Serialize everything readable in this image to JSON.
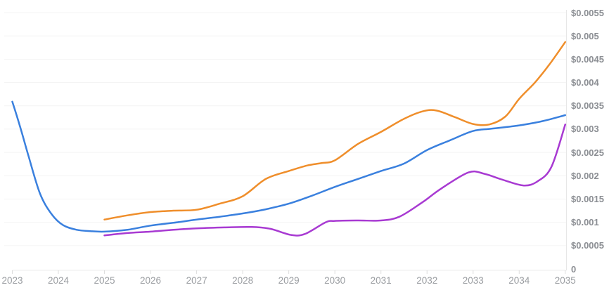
{
  "page": {
    "background": "#ffffff"
  },
  "chart": {
    "grid_color": "#f4f4f4",
    "baseline_color": "#ececec",
    "axis_color": "#e7e7e7",
    "tick_color": "#dddddd",
    "y_axis": {
      "side": "right",
      "step": 0.0005,
      "labels": [
        "$0.0055",
        "$0.005",
        "$0.0045",
        "$0.004",
        "$0.0035",
        "$0.003",
        "$0.0025",
        "$0.002",
        "$0.0015",
        "$0.001",
        "$0.0005",
        "0"
      ]
    },
    "x_axis": {
      "labels": [
        "2023",
        "2024",
        "2025",
        "2026",
        "2027",
        "2028",
        "2029",
        "2030",
        "2031",
        "2032",
        "2033",
        "2034",
        "2035"
      ]
    }
  },
  "chart_data": {
    "type": "line",
    "title": "",
    "xlabel": "",
    "ylabel": "",
    "x_range": [
      2023,
      2035
    ],
    "y_range": [
      0,
      0.0055
    ],
    "grid": "horizontal-faint",
    "legend": "none",
    "series": [
      {
        "name": "blue",
        "color": "#3a80de",
        "points": [
          [
            2023.0,
            0.00359
          ],
          [
            2023.17,
            0.00305
          ],
          [
            2023.35,
            0.00243
          ],
          [
            2023.6,
            0.00162
          ],
          [
            2023.85,
            0.00118
          ],
          [
            2024.1,
            0.00094
          ],
          [
            2024.4,
            0.00084
          ],
          [
            2024.7,
            0.00081
          ],
          [
            2025.0,
            0.0008
          ],
          [
            2025.5,
            0.00084
          ],
          [
            2026.0,
            0.00093
          ],
          [
            2026.5,
            0.00099
          ],
          [
            2027.0,
            0.00106
          ],
          [
            2027.5,
            0.00112
          ],
          [
            2028.0,
            0.00119
          ],
          [
            2028.5,
            0.00128
          ],
          [
            2029.0,
            0.0014
          ],
          [
            2029.5,
            0.00157
          ],
          [
            2030.0,
            0.00176
          ],
          [
            2030.5,
            0.00193
          ],
          [
            2031.0,
            0.0021
          ],
          [
            2031.5,
            0.00226
          ],
          [
            2032.0,
            0.00255
          ],
          [
            2032.5,
            0.00276
          ],
          [
            2033.0,
            0.00296
          ],
          [
            2033.4,
            0.00301
          ],
          [
            2034.0,
            0.00308
          ],
          [
            2034.5,
            0.00317
          ],
          [
            2035.0,
            0.0033
          ]
        ]
      },
      {
        "name": "orange",
        "color": "#ef8e2b",
        "points": [
          [
            2025.0,
            0.00106
          ],
          [
            2025.5,
            0.00115
          ],
          [
            2026.0,
            0.00122
          ],
          [
            2026.5,
            0.00125
          ],
          [
            2027.0,
            0.00127
          ],
          [
            2027.5,
            0.0014
          ],
          [
            2028.0,
            0.00156
          ],
          [
            2028.5,
            0.00193
          ],
          [
            2029.0,
            0.0021
          ],
          [
            2029.4,
            0.00222
          ],
          [
            2029.7,
            0.00227
          ],
          [
            2030.0,
            0.00233
          ],
          [
            2030.5,
            0.00268
          ],
          [
            2031.0,
            0.00294
          ],
          [
            2031.5,
            0.00322
          ],
          [
            2031.9,
            0.00338
          ],
          [
            2032.2,
            0.0034
          ],
          [
            2032.6,
            0.00326
          ],
          [
            2033.0,
            0.00311
          ],
          [
            2033.35,
            0.0031
          ],
          [
            2033.7,
            0.00327
          ],
          [
            2034.0,
            0.00365
          ],
          [
            2034.35,
            0.00401
          ],
          [
            2034.65,
            0.00438
          ],
          [
            2035.0,
            0.00487
          ]
        ]
      },
      {
        "name": "purple",
        "color": "#a83ad2",
        "points": [
          [
            2025.0,
            0.00072
          ],
          [
            2025.5,
            0.00077
          ],
          [
            2026.0,
            0.0008
          ],
          [
            2026.5,
            0.00084
          ],
          [
            2027.0,
            0.00087
          ],
          [
            2027.6,
            0.00089
          ],
          [
            2028.2,
            0.0009
          ],
          [
            2028.6,
            0.00086
          ],
          [
            2029.05,
            0.00073
          ],
          [
            2029.35,
            0.00075
          ],
          [
            2029.8,
            0.001
          ],
          [
            2030.0,
            0.00103
          ],
          [
            2030.5,
            0.00104
          ],
          [
            2031.0,
            0.00104
          ],
          [
            2031.4,
            0.00112
          ],
          [
            2031.9,
            0.00143
          ],
          [
            2032.3,
            0.00172
          ],
          [
            2032.9,
            0.00207
          ],
          [
            2033.25,
            0.00204
          ],
          [
            2033.65,
            0.00191
          ],
          [
            2034.1,
            0.00179
          ],
          [
            2034.4,
            0.00188
          ],
          [
            2034.7,
            0.00219
          ],
          [
            2035.0,
            0.0031
          ]
        ]
      }
    ]
  }
}
